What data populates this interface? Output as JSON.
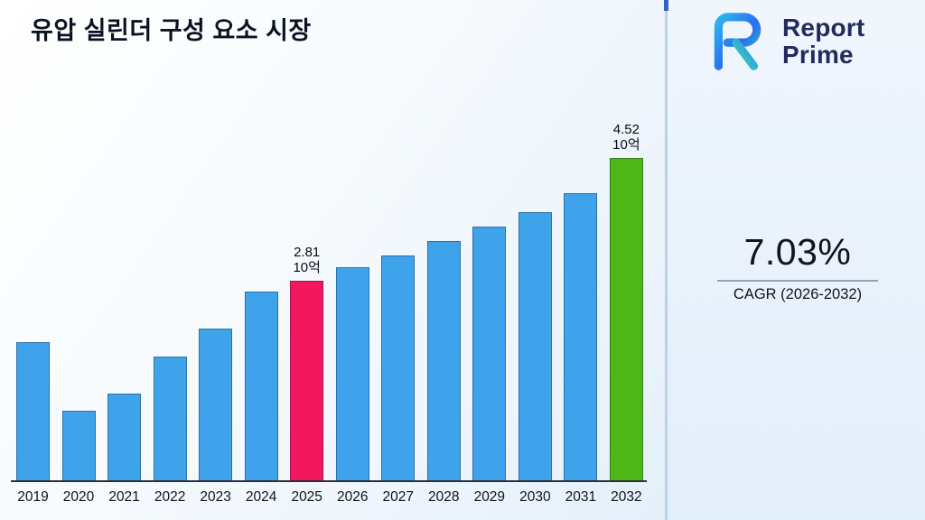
{
  "header": {
    "title": "유압 실린더 구성 요소 시장"
  },
  "brand": {
    "line1": "Report",
    "line2": "Prime"
  },
  "cagr": {
    "value": "7.03%",
    "label": "CAGR (2026-2032)"
  },
  "chart_data": {
    "type": "bar",
    "title": "유압 실린더 구성 요소 시장",
    "unit_label": "10억",
    "categories": [
      "2019",
      "2020",
      "2021",
      "2022",
      "2023",
      "2024",
      "2025",
      "2026",
      "2027",
      "2028",
      "2029",
      "2030",
      "2031",
      "2032"
    ],
    "values": [
      1.95,
      0.98,
      1.22,
      1.75,
      2.13,
      2.66,
      2.81,
      2.99,
      3.16,
      3.36,
      3.57,
      3.77,
      4.03,
      4.52
    ],
    "xlabel": "",
    "ylabel": "",
    "ylim": [
      0,
      4.6
    ],
    "grid": "off",
    "legend": "off",
    "bar_color": "#3fa3ec",
    "highlights": [
      {
        "index": 6,
        "color": "#f2175f",
        "label_value": "2.81",
        "label_unit": "10억"
      },
      {
        "index": 13,
        "color": "#4cb717",
        "label_value": "4.52",
        "label_unit": "10억"
      }
    ]
  }
}
